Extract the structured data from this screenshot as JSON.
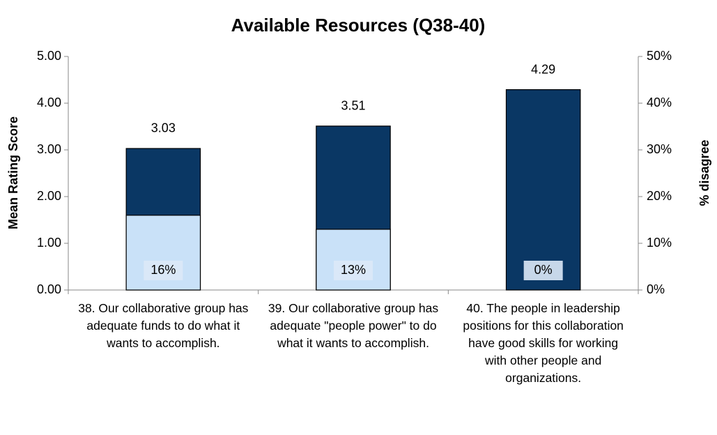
{
  "chart_data": {
    "type": "bar",
    "title": "Available Resources (Q38-40)",
    "y_label": "Mean Rating Score",
    "y2_label": "% disagree",
    "categories": [
      "38. Our collaborative group has adequate funds to do what it wants to accomplish.",
      "39. Our collaborative group has adequate \"people power\" to do what it wants to accomplish.",
      "40. The people in leadership positions for this collaboration have good skills for working with other people and organizations."
    ],
    "series": [
      {
        "color": "#0a3764",
        "values": [
          3.03,
          3.51,
          4.29
        ]
      },
      {
        "color": "#c9e1f8",
        "axis": "y2",
        "values": [
          16,
          13,
          0
        ],
        "value_labels": [
          "16%",
          "13%",
          "0%"
        ]
      }
    ],
    "ylim": [
      0,
      5
    ],
    "yticks": [
      {
        "value": 0,
        "label": "0.00"
      },
      {
        "value": 1,
        "label": "1.00"
      },
      {
        "value": 2,
        "label": "2.00"
      },
      {
        "value": 3,
        "label": "3.00"
      },
      {
        "value": 4,
        "label": "4.00"
      },
      {
        "value": 5,
        "label": "5.00"
      }
    ],
    "y2lim": [
      0,
      50
    ],
    "y2ticks": [
      {
        "value": 0,
        "label": "0%"
      },
      {
        "value": 10,
        "label": "10%"
      },
      {
        "value": 20,
        "label": "20%"
      },
      {
        "value": 30,
        "label": "30%"
      },
      {
        "value": 40,
        "label": "40%"
      },
      {
        "value": 50,
        "label": "50%"
      }
    ],
    "grid": false
  }
}
